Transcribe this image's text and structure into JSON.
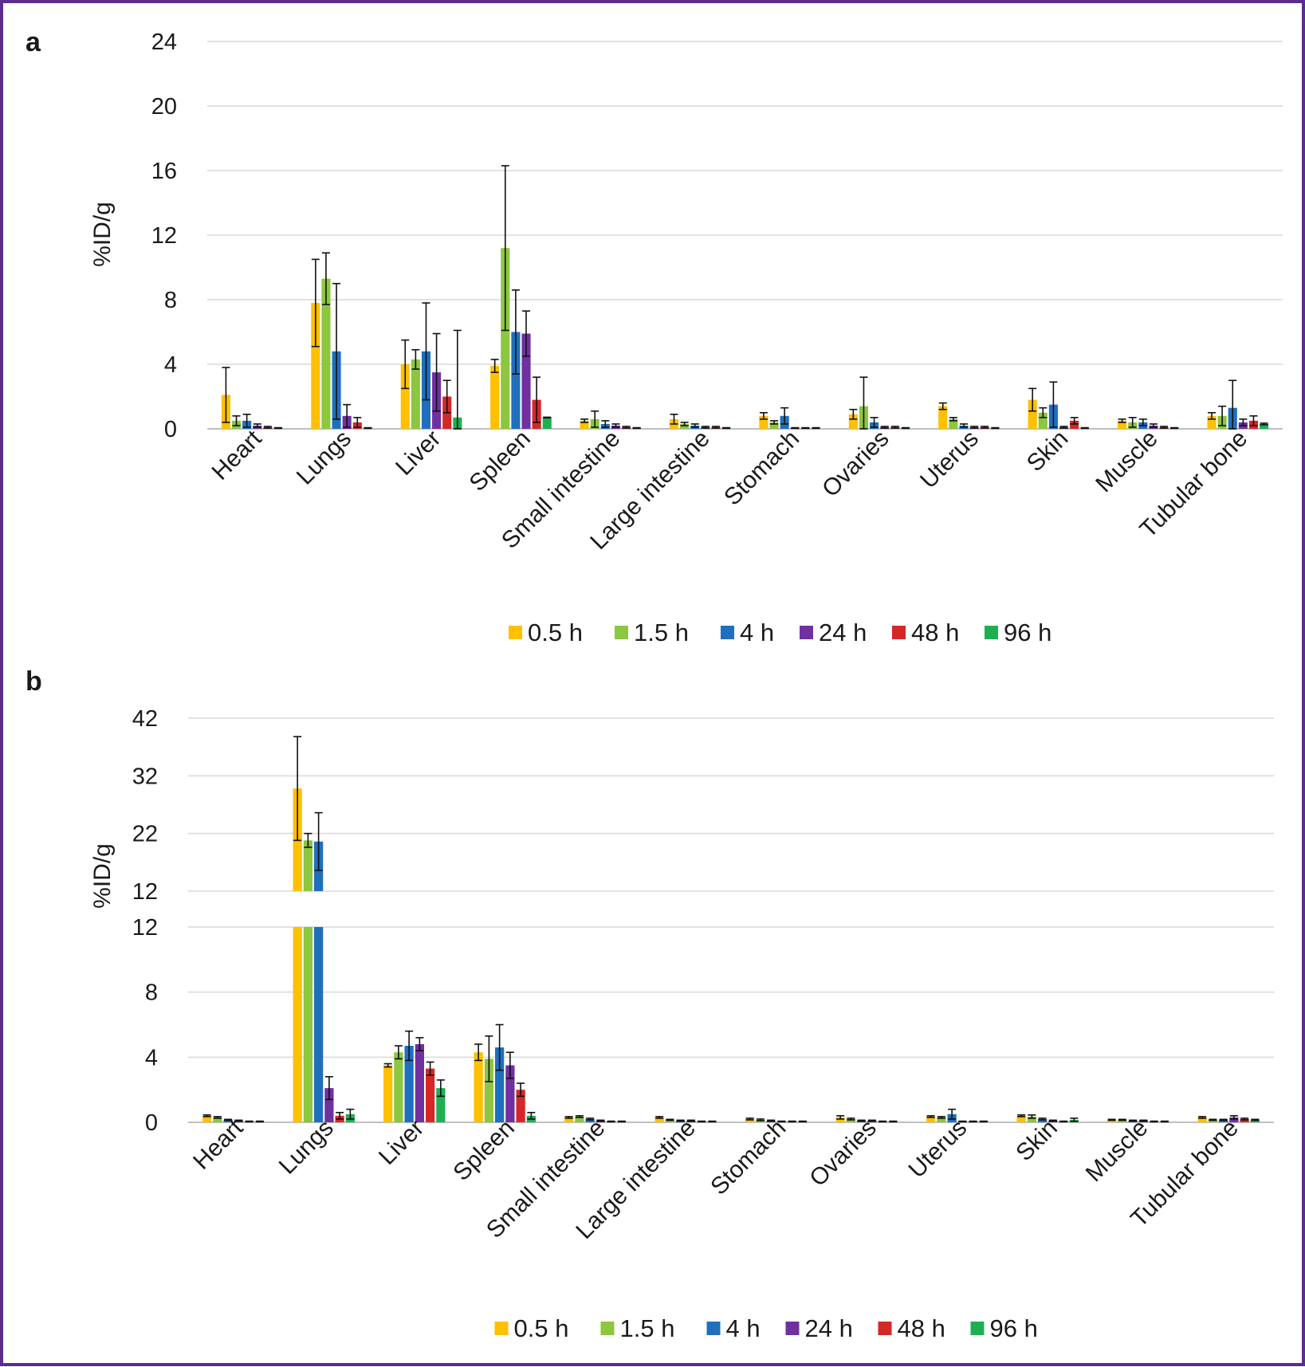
{
  "panels": [
    {
      "letter": "a",
      "ylabel": "%ID/g",
      "colors": [
        "#ffc000",
        "#8dc63f",
        "#1f6fbf",
        "#7030a0",
        "#d62728",
        "#1db053"
      ],
      "chart_data": {
        "type": "bar",
        "ylabel": "%ID/g",
        "ylim": [
          0,
          24
        ],
        "yticks": [
          0,
          4,
          8,
          12,
          16,
          20,
          24
        ],
        "grid": true,
        "legend_position": "bottom",
        "categories": [
          "Heart",
          "Lungs",
          "Liver",
          "Spleen",
          "Small intestine",
          "Large intestine",
          "Stomach",
          "Ovaries",
          "Uterus",
          "Skin",
          "Muscle",
          "Tubular bone"
        ],
        "series": [
          {
            "name": "0.5 h",
            "values": [
              2.1,
              7.8,
              4.0,
              3.9,
              0.5,
              0.6,
              0.8,
              0.9,
              1.4,
              1.8,
              0.5,
              0.8
            ],
            "errors": [
              1.7,
              2.7,
              1.5,
              0.4,
              0.1,
              0.3,
              0.2,
              0.3,
              0.2,
              0.7,
              0.1,
              0.2
            ]
          },
          {
            "name": "1.5 h",
            "values": [
              0.5,
              9.3,
              4.3,
              11.2,
              0.6,
              0.3,
              0.4,
              1.4,
              0.6,
              1.0,
              0.4,
              0.8
            ],
            "errors": [
              0.3,
              1.6,
              0.6,
              5.1,
              0.5,
              0.1,
              0.1,
              1.8,
              0.1,
              0.3,
              0.3,
              0.6
            ]
          },
          {
            "name": "4 h",
            "values": [
              0.5,
              4.8,
              4.8,
              6.0,
              0.3,
              0.2,
              0.8,
              0.4,
              0.2,
              1.5,
              0.4,
              1.3
            ],
            "errors": [
              0.4,
              4.2,
              3.0,
              2.6,
              0.2,
              0.1,
              0.5,
              0.3,
              0.1,
              1.4,
              0.2,
              1.7
            ]
          },
          {
            "name": "24 h",
            "values": [
              0.2,
              0.8,
              3.5,
              5.9,
              0.2,
              0.1,
              0.05,
              0.1,
              0.1,
              0.1,
              0.2,
              0.4
            ],
            "errors": [
              0.1,
              0.7,
              2.4,
              1.4,
              0.1,
              0.05,
              0.02,
              0.05,
              0.05,
              0.05,
              0.1,
              0.2
            ]
          },
          {
            "name": "48 h",
            "values": [
              0.1,
              0.4,
              2.0,
              1.8,
              0.1,
              0.1,
              0.05,
              0.1,
              0.1,
              0.5,
              0.1,
              0.5
            ],
            "errors": [
              0.05,
              0.3,
              1.0,
              1.4,
              0.05,
              0.05,
              0.02,
              0.05,
              0.05,
              0.2,
              0.05,
              0.3
            ]
          },
          {
            "name": "96 h",
            "values": [
              0.05,
              0.05,
              0.7,
              0.7,
              0.05,
              0.05,
              0.05,
              0.05,
              0.05,
              0.05,
              0.05,
              0.3
            ],
            "errors": [
              0.02,
              0.02,
              5.4,
              0.02,
              0.02,
              0.02,
              0.02,
              0.02,
              0.02,
              0.02,
              0.02,
              0.05
            ]
          }
        ]
      }
    },
    {
      "letter": "b",
      "ylabel": "%ID/g",
      "colors": [
        "#ffc000",
        "#8dc63f",
        "#1f6fbf",
        "#7030a0",
        "#d62728",
        "#1db053"
      ],
      "chart_data": {
        "type": "bar",
        "ylabel": "%ID/g",
        "axis_break": true,
        "ylim_lower": [
          0,
          12
        ],
        "yticks_lower": [
          0,
          4,
          8,
          12
        ],
        "ylim_upper": [
          12,
          42
        ],
        "yticks_upper": [
          12,
          22,
          32,
          42
        ],
        "grid": true,
        "legend_position": "bottom",
        "categories": [
          "Heart",
          "Lungs",
          "Liver",
          "Spleen",
          "Small intestine",
          "Large intestine",
          "Stomach",
          "Ovaries",
          "Uterus",
          "Skin",
          "Muscle",
          "Tubular bone"
        ],
        "series": [
          {
            "name": "0.5 h",
            "values": [
              0.4,
              29.8,
              3.5,
              4.3,
              0.3,
              0.3,
              0.2,
              0.3,
              0.35,
              0.4,
              0.15,
              0.3
            ],
            "errors": [
              0.05,
              9.0,
              0.1,
              0.5,
              0.05,
              0.05,
              0.05,
              0.1,
              0.05,
              0.05,
              0.03,
              0.05
            ]
          },
          {
            "name": "1.5 h",
            "values": [
              0.3,
              20.8,
              4.3,
              3.9,
              0.35,
              0.15,
              0.15,
              0.2,
              0.3,
              0.35,
              0.15,
              0.15
            ],
            "errors": [
              0.05,
              1.2,
              0.4,
              1.4,
              0.05,
              0.03,
              0.05,
              0.05,
              0.05,
              0.1,
              0.03,
              0.03
            ]
          },
          {
            "name": "4 h",
            "values": [
              0.15,
              20.6,
              4.7,
              4.6,
              0.2,
              0.1,
              0.1,
              0.1,
              0.5,
              0.2,
              0.1,
              0.15
            ],
            "errors": [
              0.03,
              5.0,
              0.9,
              1.4,
              0.05,
              0.03,
              0.03,
              0.03,
              0.3,
              0.05,
              0.03,
              0.03
            ]
          },
          {
            "name": "24 h",
            "values": [
              0.1,
              2.1,
              4.8,
              3.5,
              0.1,
              0.1,
              0.05,
              0.1,
              0.05,
              0.1,
              0.1,
              0.3
            ],
            "errors": [
              0.03,
              0.7,
              0.4,
              0.8,
              0.03,
              0.03,
              0.02,
              0.03,
              0.02,
              0.03,
              0.03,
              0.1
            ]
          },
          {
            "name": "48 h",
            "values": [
              0.05,
              0.4,
              3.3,
              2.0,
              0.05,
              0.05,
              0.05,
              0.05,
              0.05,
              0.05,
              0.05,
              0.2
            ],
            "errors": [
              0.02,
              0.2,
              0.4,
              0.4,
              0.02,
              0.02,
              0.02,
              0.02,
              0.02,
              0.02,
              0.02,
              0.05
            ]
          },
          {
            "name": "96 h",
            "values": [
              0.05,
              0.5,
              2.1,
              0.4,
              0.05,
              0.05,
              0.05,
              0.05,
              0.05,
              0.15,
              0.05,
              0.15
            ],
            "errors": [
              0.02,
              0.3,
              0.5,
              0.2,
              0.02,
              0.02,
              0.02,
              0.02,
              0.02,
              0.1,
              0.02,
              0.03
            ]
          }
        ]
      }
    }
  ]
}
